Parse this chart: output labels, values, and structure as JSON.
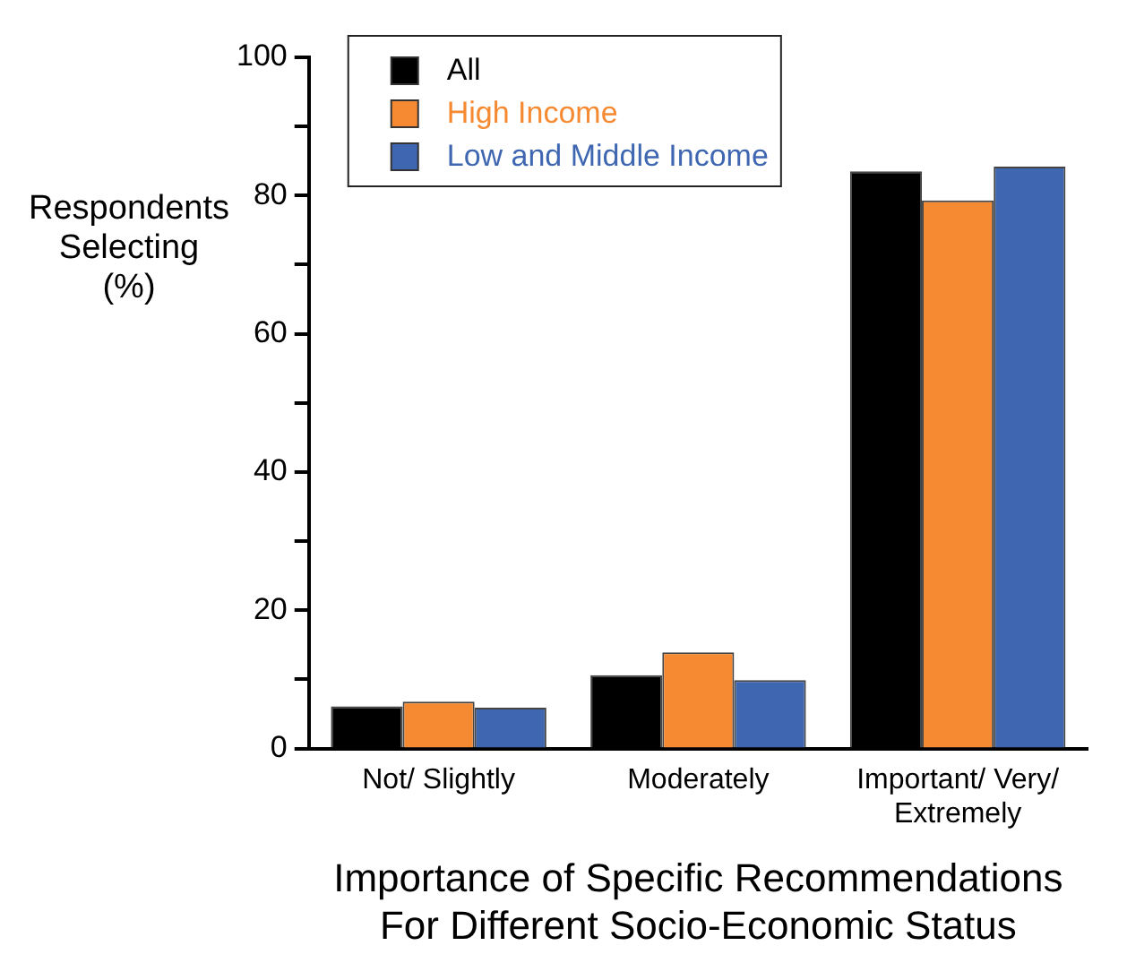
{
  "chart_data": {
    "type": "bar",
    "xlabel": "Importance of Specific Recommendations For Different Socio-Economic Status",
    "ylabel": "Respondents Selecting (%)",
    "categories": [
      "Not/ Slightly",
      "Moderately",
      "Important/ Very/ Extremely"
    ],
    "series": [
      {
        "name": "All",
        "color": "#000000",
        "values": [
          6.1,
          10.6,
          83.5
        ]
      },
      {
        "name": "High Income",
        "color": "#f58a32",
        "values": [
          6.8,
          13.9,
          79.3
        ]
      },
      {
        "name": "Low and Middle Income",
        "color": "#3f67b1",
        "values": [
          5.9,
          9.9,
          84.2
        ]
      }
    ],
    "ylim": [
      0,
      100
    ],
    "yticks": [
      0,
      {
        "value": 10,
        "label": null
      },
      20,
      {
        "value": 30,
        "label": null
      },
      40,
      {
        "value": 50,
        "label": null
      },
      60,
      {
        "value": 70,
        "label": null
      },
      80,
      {
        "value": 90,
        "label": null
      },
      100
    ],
    "grid": false,
    "legend": "top"
  }
}
